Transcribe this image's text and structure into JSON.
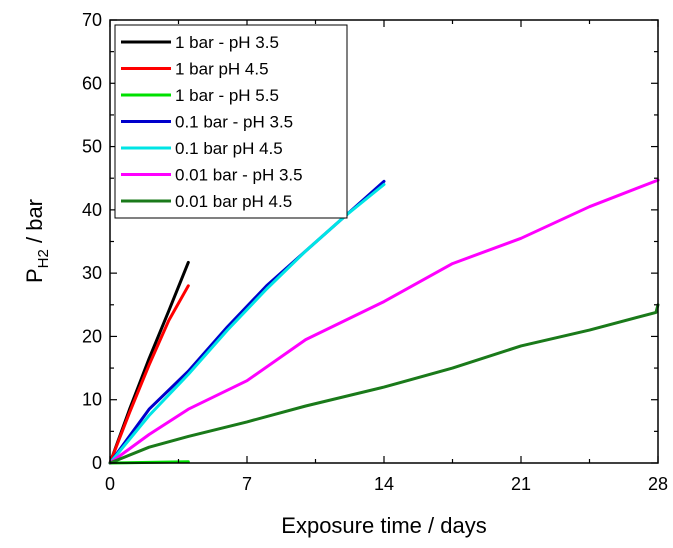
{
  "chart_data": {
    "type": "line",
    "xlabel": "Exposure time / days",
    "ylabel": {
      "main": "P",
      "sub": "H2",
      "rest": " / bar"
    },
    "xlim": [
      0,
      28
    ],
    "ylim": [
      0,
      70
    ],
    "xticks": [
      0,
      7,
      14,
      21,
      28
    ],
    "yticks": [
      0,
      10,
      20,
      30,
      40,
      50,
      60,
      70
    ],
    "x_minor_step": 3.5,
    "y_minor_step": 5,
    "grid": false,
    "legend_position": "top-left",
    "series": [
      {
        "name": "1 bar - pH 3.5",
        "color": "#000000",
        "x": [
          0,
          1,
          2,
          3,
          4
        ],
        "y": [
          0,
          8.5,
          16.5,
          24,
          31.7
        ]
      },
      {
        "name": "1 bar pH 4.5",
        "color": "#ff0000",
        "x": [
          0,
          1,
          2,
          3,
          4
        ],
        "y": [
          0,
          8,
          15.5,
          22.5,
          28
        ]
      },
      {
        "name": "1 bar - pH 5.5",
        "color": "#00e000",
        "x": [
          0,
          2,
          4
        ],
        "y": [
          0,
          0.1,
          0.2
        ]
      },
      {
        "name": "0.1 bar - pH 3.5",
        "color": "#0000cc",
        "x": [
          0,
          2,
          4,
          6,
          8,
          10,
          12,
          14
        ],
        "y": [
          0,
          8.5,
          14.5,
          21.5,
          28,
          33.5,
          39,
          44.5
        ]
      },
      {
        "name": "0.1 bar pH 4.5",
        "color": "#00e5e5",
        "x": [
          0,
          2,
          4,
          6,
          8,
          10,
          12,
          14
        ],
        "y": [
          0,
          7.5,
          14,
          21,
          27.5,
          33.5,
          39,
          44
        ]
      },
      {
        "name": "0.01 bar - pH 3.5",
        "color": "#ff00ff",
        "x": [
          0,
          2,
          4,
          7,
          10,
          14,
          17.5,
          21,
          24.5,
          28
        ],
        "y": [
          0,
          4.5,
          8.5,
          13,
          19.5,
          25.5,
          31.5,
          35.5,
          40.5,
          44.7
        ]
      },
      {
        "name": "0.01 bar pH 4.5",
        "color": "#1a7a1a",
        "x": [
          0,
          2,
          4,
          7,
          10,
          14,
          17.5,
          21,
          24.5,
          27.9,
          28
        ],
        "y": [
          0,
          2.5,
          4.2,
          6.5,
          9,
          12,
          15,
          18.5,
          21,
          23.8,
          25
        ]
      }
    ]
  }
}
